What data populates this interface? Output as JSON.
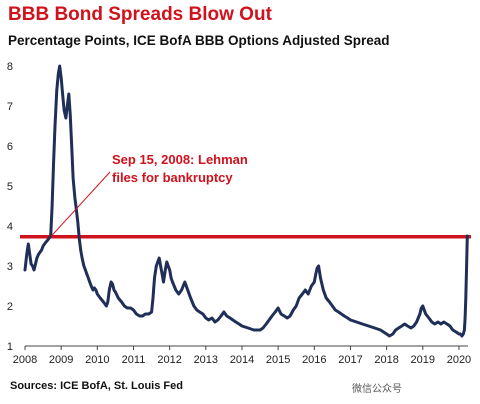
{
  "header": {
    "title": "BBB Bond Spreads Blow Out",
    "subtitle": "Percentage Points, ICE BofA BBB Options Adjusted Spread"
  },
  "footer": {
    "source": "Sources: ICE BofA, St. Louis Fed",
    "watermark": "微信公众号"
  },
  "colors": {
    "title": "#d0121c",
    "series_line": "#1f2f57",
    "reference_line": "#d0121c"
  },
  "chart_data": {
    "type": "line",
    "title": "BBB Bond Spreads Blow Out",
    "subtitle": "Percentage Points, ICE BofA BBB Options Adjusted Spread",
    "xlabel": "",
    "ylabel": "",
    "xlim": [
      2008.0,
      2020.25
    ],
    "ylim": [
      1,
      8
    ],
    "x_ticks": [
      "2008",
      "2009",
      "2010",
      "2011",
      "2012",
      "2013",
      "2014",
      "2015",
      "2016",
      "2017",
      "2018",
      "2019",
      "2020"
    ],
    "y_ticks": [
      "1",
      "2",
      "3",
      "4",
      "5",
      "6",
      "7",
      "8"
    ],
    "grid": false,
    "reference_line": {
      "y": 3.73
    },
    "annotation": {
      "line1": "Sep 15, 2008: Lehman",
      "line2": "files for bankruptcy",
      "points_to": {
        "x": 2008.71,
        "y": 3.73
      }
    },
    "series": [
      {
        "values": [
          [
            2008.0,
            2.9
          ],
          [
            2008.05,
            3.3
          ],
          [
            2008.09,
            3.55
          ],
          [
            2008.13,
            3.3
          ],
          [
            2008.17,
            3.05
          ],
          [
            2008.21,
            3.0
          ],
          [
            2008.25,
            2.9
          ],
          [
            2008.29,
            3.05
          ],
          [
            2008.33,
            3.2
          ],
          [
            2008.38,
            3.3
          ],
          [
            2008.42,
            3.35
          ],
          [
            2008.46,
            3.4
          ],
          [
            2008.5,
            3.5
          ],
          [
            2008.54,
            3.55
          ],
          [
            2008.58,
            3.6
          ],
          [
            2008.63,
            3.65
          ],
          [
            2008.67,
            3.7
          ],
          [
            2008.71,
            3.75
          ],
          [
            2008.75,
            4.5
          ],
          [
            2008.79,
            5.6
          ],
          [
            2008.83,
            6.5
          ],
          [
            2008.88,
            7.4
          ],
          [
            2008.92,
            7.8
          ],
          [
            2008.96,
            8.0
          ],
          [
            2009.0,
            7.7
          ],
          [
            2009.04,
            7.3
          ],
          [
            2009.08,
            6.9
          ],
          [
            2009.13,
            6.7
          ],
          [
            2009.17,
            7.0
          ],
          [
            2009.21,
            7.3
          ],
          [
            2009.25,
            6.8
          ],
          [
            2009.29,
            6.0
          ],
          [
            2009.33,
            5.2
          ],
          [
            2009.38,
            4.7
          ],
          [
            2009.42,
            4.4
          ],
          [
            2009.46,
            4.1
          ],
          [
            2009.5,
            3.7
          ],
          [
            2009.54,
            3.4
          ],
          [
            2009.58,
            3.2
          ],
          [
            2009.63,
            3.0
          ],
          [
            2009.67,
            2.9
          ],
          [
            2009.71,
            2.8
          ],
          [
            2009.75,
            2.7
          ],
          [
            2009.79,
            2.6
          ],
          [
            2009.83,
            2.5
          ],
          [
            2009.88,
            2.4
          ],
          [
            2009.92,
            2.45
          ],
          [
            2009.96,
            2.4
          ],
          [
            2010.0,
            2.3
          ],
          [
            2010.08,
            2.2
          ],
          [
            2010.17,
            2.1
          ],
          [
            2010.25,
            2.0
          ],
          [
            2010.29,
            2.1
          ],
          [
            2010.33,
            2.4
          ],
          [
            2010.38,
            2.6
          ],
          [
            2010.42,
            2.55
          ],
          [
            2010.46,
            2.4
          ],
          [
            2010.5,
            2.35
          ],
          [
            2010.58,
            2.2
          ],
          [
            2010.67,
            2.1
          ],
          [
            2010.75,
            2.0
          ],
          [
            2010.83,
            1.95
          ],
          [
            2010.92,
            1.95
          ],
          [
            2011.0,
            1.9
          ],
          [
            2011.08,
            1.8
          ],
          [
            2011.17,
            1.75
          ],
          [
            2011.25,
            1.75
          ],
          [
            2011.33,
            1.8
          ],
          [
            2011.42,
            1.8
          ],
          [
            2011.5,
            1.85
          ],
          [
            2011.54,
            2.2
          ],
          [
            2011.58,
            2.7
          ],
          [
            2011.63,
            3.0
          ],
          [
            2011.67,
            3.1
          ],
          [
            2011.71,
            3.2
          ],
          [
            2011.75,
            3.0
          ],
          [
            2011.79,
            2.8
          ],
          [
            2011.83,
            2.6
          ],
          [
            2011.88,
            2.9
          ],
          [
            2011.92,
            3.1
          ],
          [
            2011.96,
            3.0
          ],
          [
            2012.0,
            2.9
          ],
          [
            2012.04,
            2.7
          ],
          [
            2012.08,
            2.6
          ],
          [
            2012.17,
            2.4
          ],
          [
            2012.25,
            2.3
          ],
          [
            2012.33,
            2.4
          ],
          [
            2012.42,
            2.6
          ],
          [
            2012.46,
            2.5
          ],
          [
            2012.5,
            2.4
          ],
          [
            2012.58,
            2.2
          ],
          [
            2012.67,
            2.0
          ],
          [
            2012.75,
            1.9
          ],
          [
            2012.83,
            1.85
          ],
          [
            2012.92,
            1.8
          ],
          [
            2013.0,
            1.7
          ],
          [
            2013.08,
            1.65
          ],
          [
            2013.17,
            1.7
          ],
          [
            2013.25,
            1.6
          ],
          [
            2013.33,
            1.65
          ],
          [
            2013.42,
            1.75
          ],
          [
            2013.5,
            1.85
          ],
          [
            2013.58,
            1.75
          ],
          [
            2013.67,
            1.7
          ],
          [
            2013.75,
            1.65
          ],
          [
            2013.83,
            1.6
          ],
          [
            2013.92,
            1.55
          ],
          [
            2014.0,
            1.5
          ],
          [
            2014.17,
            1.45
          ],
          [
            2014.33,
            1.4
          ],
          [
            2014.5,
            1.4
          ],
          [
            2014.58,
            1.45
          ],
          [
            2014.67,
            1.55
          ],
          [
            2014.75,
            1.65
          ],
          [
            2014.83,
            1.75
          ],
          [
            2014.92,
            1.85
          ],
          [
            2015.0,
            1.95
          ],
          [
            2015.08,
            1.8
          ],
          [
            2015.17,
            1.75
          ],
          [
            2015.25,
            1.7
          ],
          [
            2015.33,
            1.75
          ],
          [
            2015.42,
            1.9
          ],
          [
            2015.5,
            2.0
          ],
          [
            2015.58,
            2.2
          ],
          [
            2015.67,
            2.3
          ],
          [
            2015.75,
            2.4
          ],
          [
            2015.83,
            2.3
          ],
          [
            2015.92,
            2.5
          ],
          [
            2016.0,
            2.6
          ],
          [
            2016.04,
            2.8
          ],
          [
            2016.08,
            2.95
          ],
          [
            2016.12,
            3.0
          ],
          [
            2016.17,
            2.7
          ],
          [
            2016.25,
            2.4
          ],
          [
            2016.33,
            2.2
          ],
          [
            2016.42,
            2.1
          ],
          [
            2016.5,
            2.0
          ],
          [
            2016.58,
            1.9
          ],
          [
            2016.67,
            1.85
          ],
          [
            2016.75,
            1.8
          ],
          [
            2016.83,
            1.75
          ],
          [
            2016.92,
            1.7
          ],
          [
            2017.0,
            1.65
          ],
          [
            2017.17,
            1.6
          ],
          [
            2017.33,
            1.55
          ],
          [
            2017.5,
            1.5
          ],
          [
            2017.67,
            1.45
          ],
          [
            2017.83,
            1.4
          ],
          [
            2018.0,
            1.3
          ],
          [
            2018.08,
            1.25
          ],
          [
            2018.17,
            1.3
          ],
          [
            2018.25,
            1.4
          ],
          [
            2018.33,
            1.45
          ],
          [
            2018.42,
            1.5
          ],
          [
            2018.5,
            1.55
          ],
          [
            2018.58,
            1.5
          ],
          [
            2018.67,
            1.45
          ],
          [
            2018.75,
            1.5
          ],
          [
            2018.83,
            1.6
          ],
          [
            2018.92,
            1.8
          ],
          [
            2018.96,
            1.95
          ],
          [
            2019.0,
            2.0
          ],
          [
            2019.04,
            1.9
          ],
          [
            2019.08,
            1.8
          ],
          [
            2019.17,
            1.7
          ],
          [
            2019.25,
            1.6
          ],
          [
            2019.33,
            1.55
          ],
          [
            2019.42,
            1.6
          ],
          [
            2019.5,
            1.55
          ],
          [
            2019.58,
            1.6
          ],
          [
            2019.67,
            1.55
          ],
          [
            2019.75,
            1.5
          ],
          [
            2019.83,
            1.4
          ],
          [
            2019.92,
            1.35
          ],
          [
            2020.0,
            1.3
          ],
          [
            2020.04,
            1.3
          ],
          [
            2020.08,
            1.25
          ],
          [
            2020.12,
            1.3
          ],
          [
            2020.15,
            1.4
          ],
          [
            2020.17,
            1.7
          ],
          [
            2020.19,
            2.2
          ],
          [
            2020.21,
            3.0
          ],
          [
            2020.23,
            3.75
          ]
        ]
      }
    ]
  }
}
